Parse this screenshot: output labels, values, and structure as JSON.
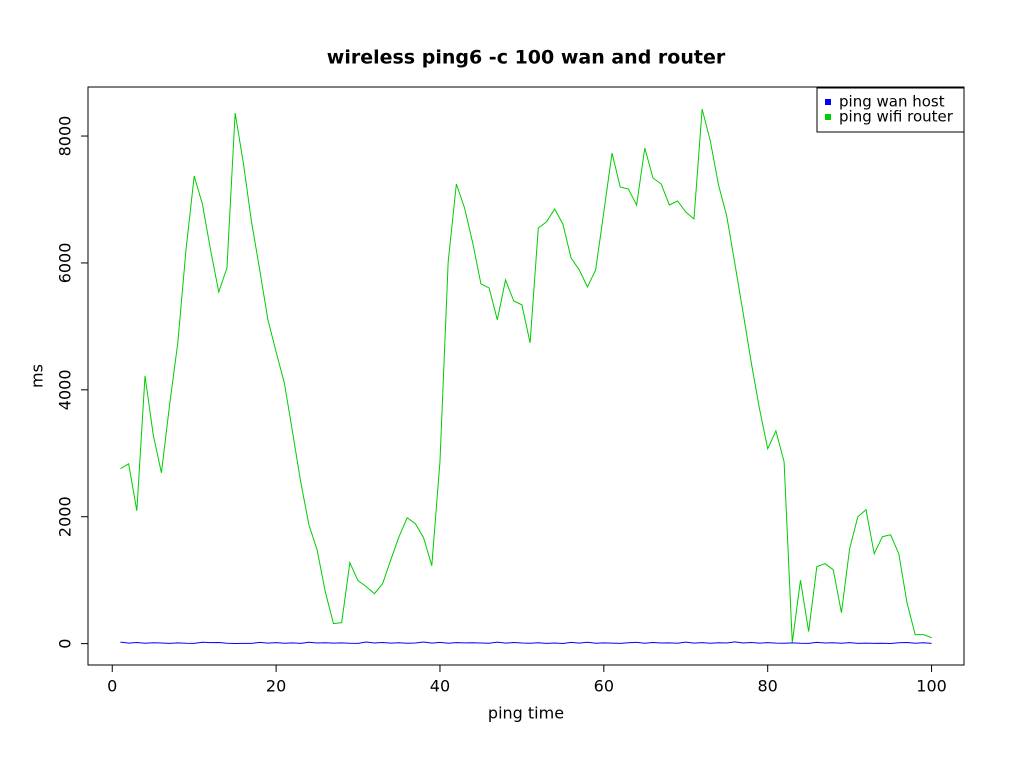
{
  "chart_data": {
    "type": "line",
    "title": "wireless ping6 -c 100 wan and router",
    "x_label": "ping time",
    "y_label": "ms",
    "x": [
      1,
      2,
      3,
      4,
      5,
      6,
      7,
      8,
      9,
      10,
      11,
      12,
      13,
      14,
      15,
      16,
      17,
      18,
      19,
      20,
      21,
      22,
      23,
      24,
      25,
      26,
      27,
      28,
      29,
      30,
      31,
      32,
      33,
      34,
      35,
      36,
      37,
      38,
      39,
      40,
      41,
      42,
      43,
      44,
      45,
      46,
      47,
      48,
      49,
      50,
      51,
      52,
      53,
      54,
      55,
      56,
      57,
      58,
      59,
      60,
      61,
      62,
      63,
      64,
      65,
      66,
      67,
      68,
      69,
      70,
      71,
      72,
      73,
      74,
      75,
      76,
      77,
      78,
      79,
      80,
      81,
      82,
      83,
      84,
      85,
      86,
      87,
      88,
      89,
      90,
      91,
      92,
      93,
      94,
      95,
      96,
      97,
      98,
      99,
      100
    ],
    "series": [
      {
        "name": "ping wan host",
        "color": "#0000ff",
        "values": [
          24,
          8,
          18,
          5,
          14,
          9,
          3,
          12,
          6,
          4,
          22,
          15,
          17,
          6,
          2,
          3,
          4,
          19,
          7,
          16,
          5,
          11,
          3,
          21,
          10,
          14,
          8,
          12,
          6,
          4,
          25,
          9,
          18,
          7,
          13,
          5,
          10,
          26,
          8,
          20,
          6,
          15,
          11,
          14,
          9,
          5,
          23,
          7,
          18,
          10,
          6,
          13,
          4,
          9,
          2,
          19,
          8,
          22,
          5,
          11,
          7,
          3,
          14,
          20,
          6,
          17,
          9,
          12,
          5,
          24,
          8,
          16,
          6,
          13,
          10,
          28,
          9,
          18,
          7,
          15,
          8,
          6,
          12,
          5,
          3,
          20,
          10,
          14,
          6,
          16,
          4,
          8,
          3,
          5,
          2,
          14,
          18,
          6,
          13,
          4
        ]
      },
      {
        "name": "ping wifi router",
        "color": "#00cd00",
        "values": [
          2756,
          2835,
          2094,
          4220,
          3291,
          2693,
          3764,
          4740,
          6205,
          7370,
          6929,
          6205,
          5543,
          5921,
          8362,
          7575,
          6646,
          5890,
          5102,
          4598,
          4110,
          3339,
          2551,
          1874,
          1480,
          819,
          315,
          331,
          1276,
          992,
          898,
          787,
          945,
          1323,
          1685,
          1984,
          1890,
          1669,
          1228,
          2866,
          6016,
          7244,
          6866,
          6315,
          5669,
          5606,
          5102,
          5732,
          5402,
          5339,
          4740,
          6551,
          6646,
          6850,
          6614,
          6079,
          5890,
          5622,
          5890,
          6803,
          7732,
          7197,
          7165,
          6913,
          7811,
          7339,
          7244,
          6913,
          6976,
          6803,
          6693,
          8425,
          7921,
          7228,
          6740,
          5984,
          5213,
          4425,
          3701,
          3071,
          3354,
          2866,
          16,
          1000,
          190,
          1213,
          1260,
          1165,
          488,
          1496,
          2000,
          2110,
          1417,
          1685,
          1716,
          1417,
          646,
          142,
          142,
          94
        ]
      }
    ],
    "xlim": [
      -2.96,
      103.96
    ],
    "ylim": [
      -337,
      8773
    ],
    "xticks": [
      0,
      20,
      40,
      60,
      80,
      100
    ],
    "yticks": [
      0,
      2000,
      4000,
      6000,
      8000
    ],
    "legend": "topright",
    "grid": false
  }
}
